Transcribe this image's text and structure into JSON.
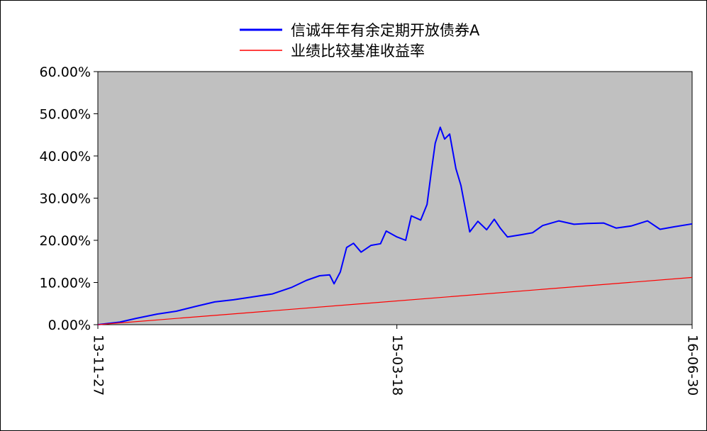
{
  "chart_data": {
    "type": "line",
    "legend_position": "top-center",
    "grid": false,
    "plot_background": "#c0c0c0",
    "x_ticks": [
      "13-11-27",
      "15-03-18",
      "16-06-30"
    ],
    "x_range": [
      "2013-11-27",
      "2016-06-30"
    ],
    "y_ticks": [
      "0.00%",
      "10.00%",
      "20.00%",
      "30.00%",
      "40.00%",
      "50.00%",
      "60.00%"
    ],
    "ylim": [
      0,
      60
    ],
    "series": [
      {
        "name": "信诚年年有余定期开放债券A",
        "color": "#0000ff",
        "points": [
          [
            "2013-11-27",
            0.0
          ],
          [
            "2014-01-01",
            0.6
          ],
          [
            "2014-01-27",
            1.5
          ],
          [
            "2014-03-01",
            2.5
          ],
          [
            "2014-04-01",
            3.2
          ],
          [
            "2014-05-01",
            4.3
          ],
          [
            "2014-06-01",
            5.4
          ],
          [
            "2014-07-01",
            5.9
          ],
          [
            "2014-08-01",
            6.6
          ],
          [
            "2014-09-01",
            7.3
          ],
          [
            "2014-10-01",
            8.8
          ],
          [
            "2014-10-25",
            10.5
          ],
          [
            "2014-11-15",
            11.6
          ],
          [
            "2014-12-01",
            11.8
          ],
          [
            "2014-12-08",
            9.7
          ],
          [
            "2014-12-18",
            12.5
          ],
          [
            "2014-12-28",
            18.3
          ],
          [
            "2015-01-08",
            19.3
          ],
          [
            "2015-01-20",
            17.2
          ],
          [
            "2015-02-05",
            18.8
          ],
          [
            "2015-02-20",
            19.2
          ],
          [
            "2015-03-01",
            22.2
          ],
          [
            "2015-03-18",
            20.8
          ],
          [
            "2015-04-01",
            20.0
          ],
          [
            "2015-04-10",
            25.8
          ],
          [
            "2015-04-25",
            24.8
          ],
          [
            "2015-05-05",
            28.5
          ],
          [
            "2015-05-12",
            36.5
          ],
          [
            "2015-05-18",
            43.0
          ],
          [
            "2015-05-26",
            46.8
          ],
          [
            "2015-06-02",
            44.0
          ],
          [
            "2015-06-10",
            45.2
          ],
          [
            "2015-06-20",
            37.0
          ],
          [
            "2015-06-28",
            33.0
          ],
          [
            "2015-07-05",
            27.5
          ],
          [
            "2015-07-12",
            22.0
          ],
          [
            "2015-07-25",
            24.5
          ],
          [
            "2015-08-08",
            22.5
          ],
          [
            "2015-08-20",
            25.0
          ],
          [
            "2015-08-30",
            22.8
          ],
          [
            "2015-09-10",
            20.8
          ],
          [
            "2015-10-01",
            21.3
          ],
          [
            "2015-10-20",
            21.8
          ],
          [
            "2015-11-05",
            23.5
          ],
          [
            "2015-12-01",
            24.6
          ],
          [
            "2015-12-25",
            23.8
          ],
          [
            "2016-01-15",
            24.0
          ],
          [
            "2016-02-10",
            24.1
          ],
          [
            "2016-03-01",
            22.9
          ],
          [
            "2016-03-25",
            23.4
          ],
          [
            "2016-04-20",
            24.6
          ],
          [
            "2016-05-10",
            22.6
          ],
          [
            "2016-06-01",
            23.2
          ],
          [
            "2016-06-30",
            23.9
          ]
        ]
      },
      {
        "name": "业绩比较基准收益率",
        "color": "#ff0000",
        "points": [
          [
            "2013-11-27",
            0.0
          ],
          [
            "2016-06-30",
            11.2
          ]
        ]
      }
    ]
  }
}
